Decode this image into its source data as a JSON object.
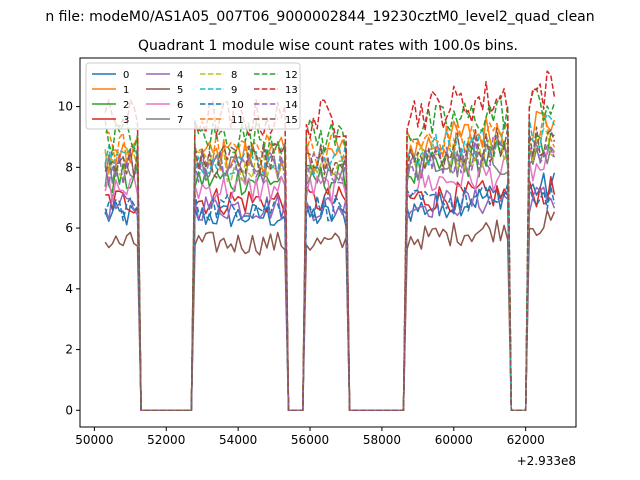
{
  "suptitle": "n file: modeM0/AS1A05_007T06_9000002844_19230cztM0_level2_quad_clean",
  "chart_data": {
    "type": "line",
    "title": "Quadrant 1 module wise count rates with 100.0s bins.",
    "xlabel": "",
    "ylabel": "",
    "offset_text": "+2.933e8",
    "xlim": [
      49600,
      63400
    ],
    "ylim": [
      -0.55,
      11.6
    ],
    "xticks": [
      50000,
      52000,
      54000,
      56000,
      58000,
      60000,
      62000
    ],
    "xtick_labels": [
      "50000",
      "52000",
      "54000",
      "56000",
      "58000",
      "60000",
      "62000"
    ],
    "yticks": [
      0,
      2,
      4,
      6,
      8,
      10
    ],
    "ytick_labels": [
      "0",
      "2",
      "4",
      "6",
      "8",
      "10"
    ],
    "grid": false,
    "legend_position": "top-left",
    "legend_columns": 4,
    "time_range": [
      50300,
      62800
    ],
    "bin_width": 100,
    "active_intervals": [
      [
        50300,
        51200
      ],
      [
        52800,
        55300
      ],
      [
        55900,
        57000
      ],
      [
        58700,
        61500
      ],
      [
        62100,
        62800
      ]
    ],
    "series": [
      {
        "name": "0",
        "color": "#1f77b4",
        "dash": "solid",
        "level": 6.4,
        "end_level": 7.4
      },
      {
        "name": "1",
        "color": "#ff7f0e",
        "dash": "solid",
        "level": 8.4,
        "end_level": 9.6
      },
      {
        "name": "2",
        "color": "#2ca02c",
        "dash": "solid",
        "level": 7.6,
        "end_level": 8.7
      },
      {
        "name": "3",
        "color": "#d62728",
        "dash": "solid",
        "level": 6.9,
        "end_level": 7.2
      },
      {
        "name": "4",
        "color": "#9467bd",
        "dash": "solid",
        "level": 6.7,
        "end_level": 7.0
      },
      {
        "name": "5",
        "color": "#8c564b",
        "dash": "solid",
        "level": 5.5,
        "end_level": 6.2
      },
      {
        "name": "6",
        "color": "#e377c2",
        "dash": "solid",
        "level": 7.3,
        "end_level": 8.0
      },
      {
        "name": "7",
        "color": "#7f7f7f",
        "dash": "solid",
        "level": 7.9,
        "end_level": 8.4
      },
      {
        "name": "8",
        "color": "#bcbd22",
        "dash": "dashed",
        "level": 8.1,
        "end_level": 8.9
      },
      {
        "name": "9",
        "color": "#17becf",
        "dash": "dashed",
        "level": 8.3,
        "end_level": 9.2
      },
      {
        "name": "10",
        "color": "#1f77b4",
        "dash": "dashed",
        "level": 6.7,
        "end_level": 7.1
      },
      {
        "name": "11",
        "color": "#ff7f0e",
        "dash": "dashed",
        "level": 8.6,
        "end_level": 9.3
      },
      {
        "name": "12",
        "color": "#2ca02c",
        "dash": "dashed",
        "level": 9.0,
        "end_level": 10.2
      },
      {
        "name": "13",
        "color": "#d62728",
        "dash": "dashed",
        "level": 9.6,
        "end_level": 10.6
      },
      {
        "name": "14",
        "color": "#9467bd",
        "dash": "dashed",
        "level": 8.0,
        "end_level": 8.8
      },
      {
        "name": "15",
        "color": "#8c564b",
        "dash": "dashed",
        "level": 8.2,
        "end_level": 9.0
      }
    ]
  }
}
